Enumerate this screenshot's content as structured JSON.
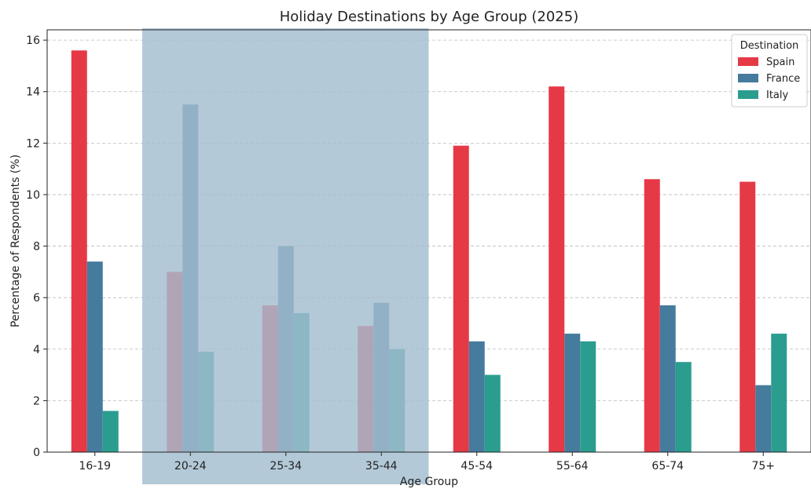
{
  "chart_data": {
    "type": "bar",
    "title": "Holiday Destinations by Age Group (2025)",
    "xlabel": "Age Group",
    "ylabel": "Percentage of Respondents (%)",
    "ylim": [
      0,
      16.4
    ],
    "yticks": [
      0,
      2,
      4,
      6,
      8,
      10,
      12,
      14,
      16
    ],
    "grid": "y-dashed",
    "categories": [
      "16-19",
      "20-24",
      "25-34",
      "35-44",
      "45-54",
      "55-64",
      "65-74",
      "75+"
    ],
    "series": [
      {
        "name": "Spain",
        "color": "#e63946",
        "values": [
          15.6,
          7.0,
          5.7,
          4.9,
          11.9,
          14.2,
          10.6,
          10.5
        ]
      },
      {
        "name": "France",
        "color": "#457b9d",
        "values": [
          7.4,
          13.5,
          8.0,
          5.8,
          4.3,
          4.6,
          5.7,
          2.6
        ]
      },
      {
        "name": "Italy",
        "color": "#2a9d8f",
        "values": [
          1.6,
          3.9,
          5.4,
          4.0,
          3.0,
          4.3,
          3.5,
          4.6
        ]
      }
    ],
    "highlight": {
      "from": "20-24",
      "to": "35-44",
      "color": "#a3bdd0"
    },
    "legend": {
      "title": "Destination",
      "position": "top-right"
    }
  }
}
